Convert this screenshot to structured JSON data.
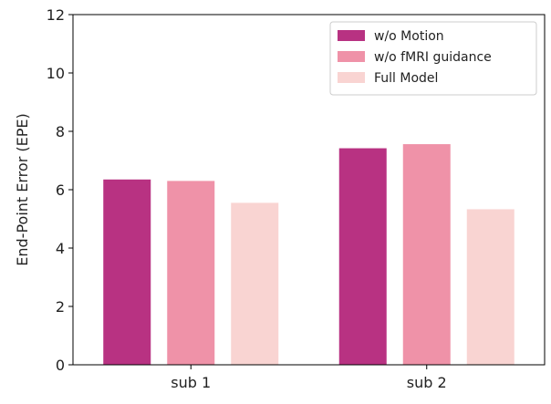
{
  "chart_data": {
    "type": "bar",
    "title": "",
    "xlabel": "",
    "ylabel": "End-Point Error (EPE)",
    "categories": [
      "sub 1",
      "sub 2"
    ],
    "series": [
      {
        "name": "w/o Motion",
        "values": [
          6.35,
          7.42
        ],
        "color": "#b83282"
      },
      {
        "name": "w/o fMRI guidance",
        "values": [
          6.3,
          7.56
        ],
        "color": "#ef92a8"
      },
      {
        "name": "Full Model",
        "values": [
          5.55,
          5.33
        ],
        "color": "#f9d4d2"
      }
    ],
    "ylim": [
      0,
      12
    ],
    "yticks": [
      0,
      2,
      4,
      6,
      8,
      10,
      12
    ],
    "grid": false,
    "legend": "top-right"
  }
}
